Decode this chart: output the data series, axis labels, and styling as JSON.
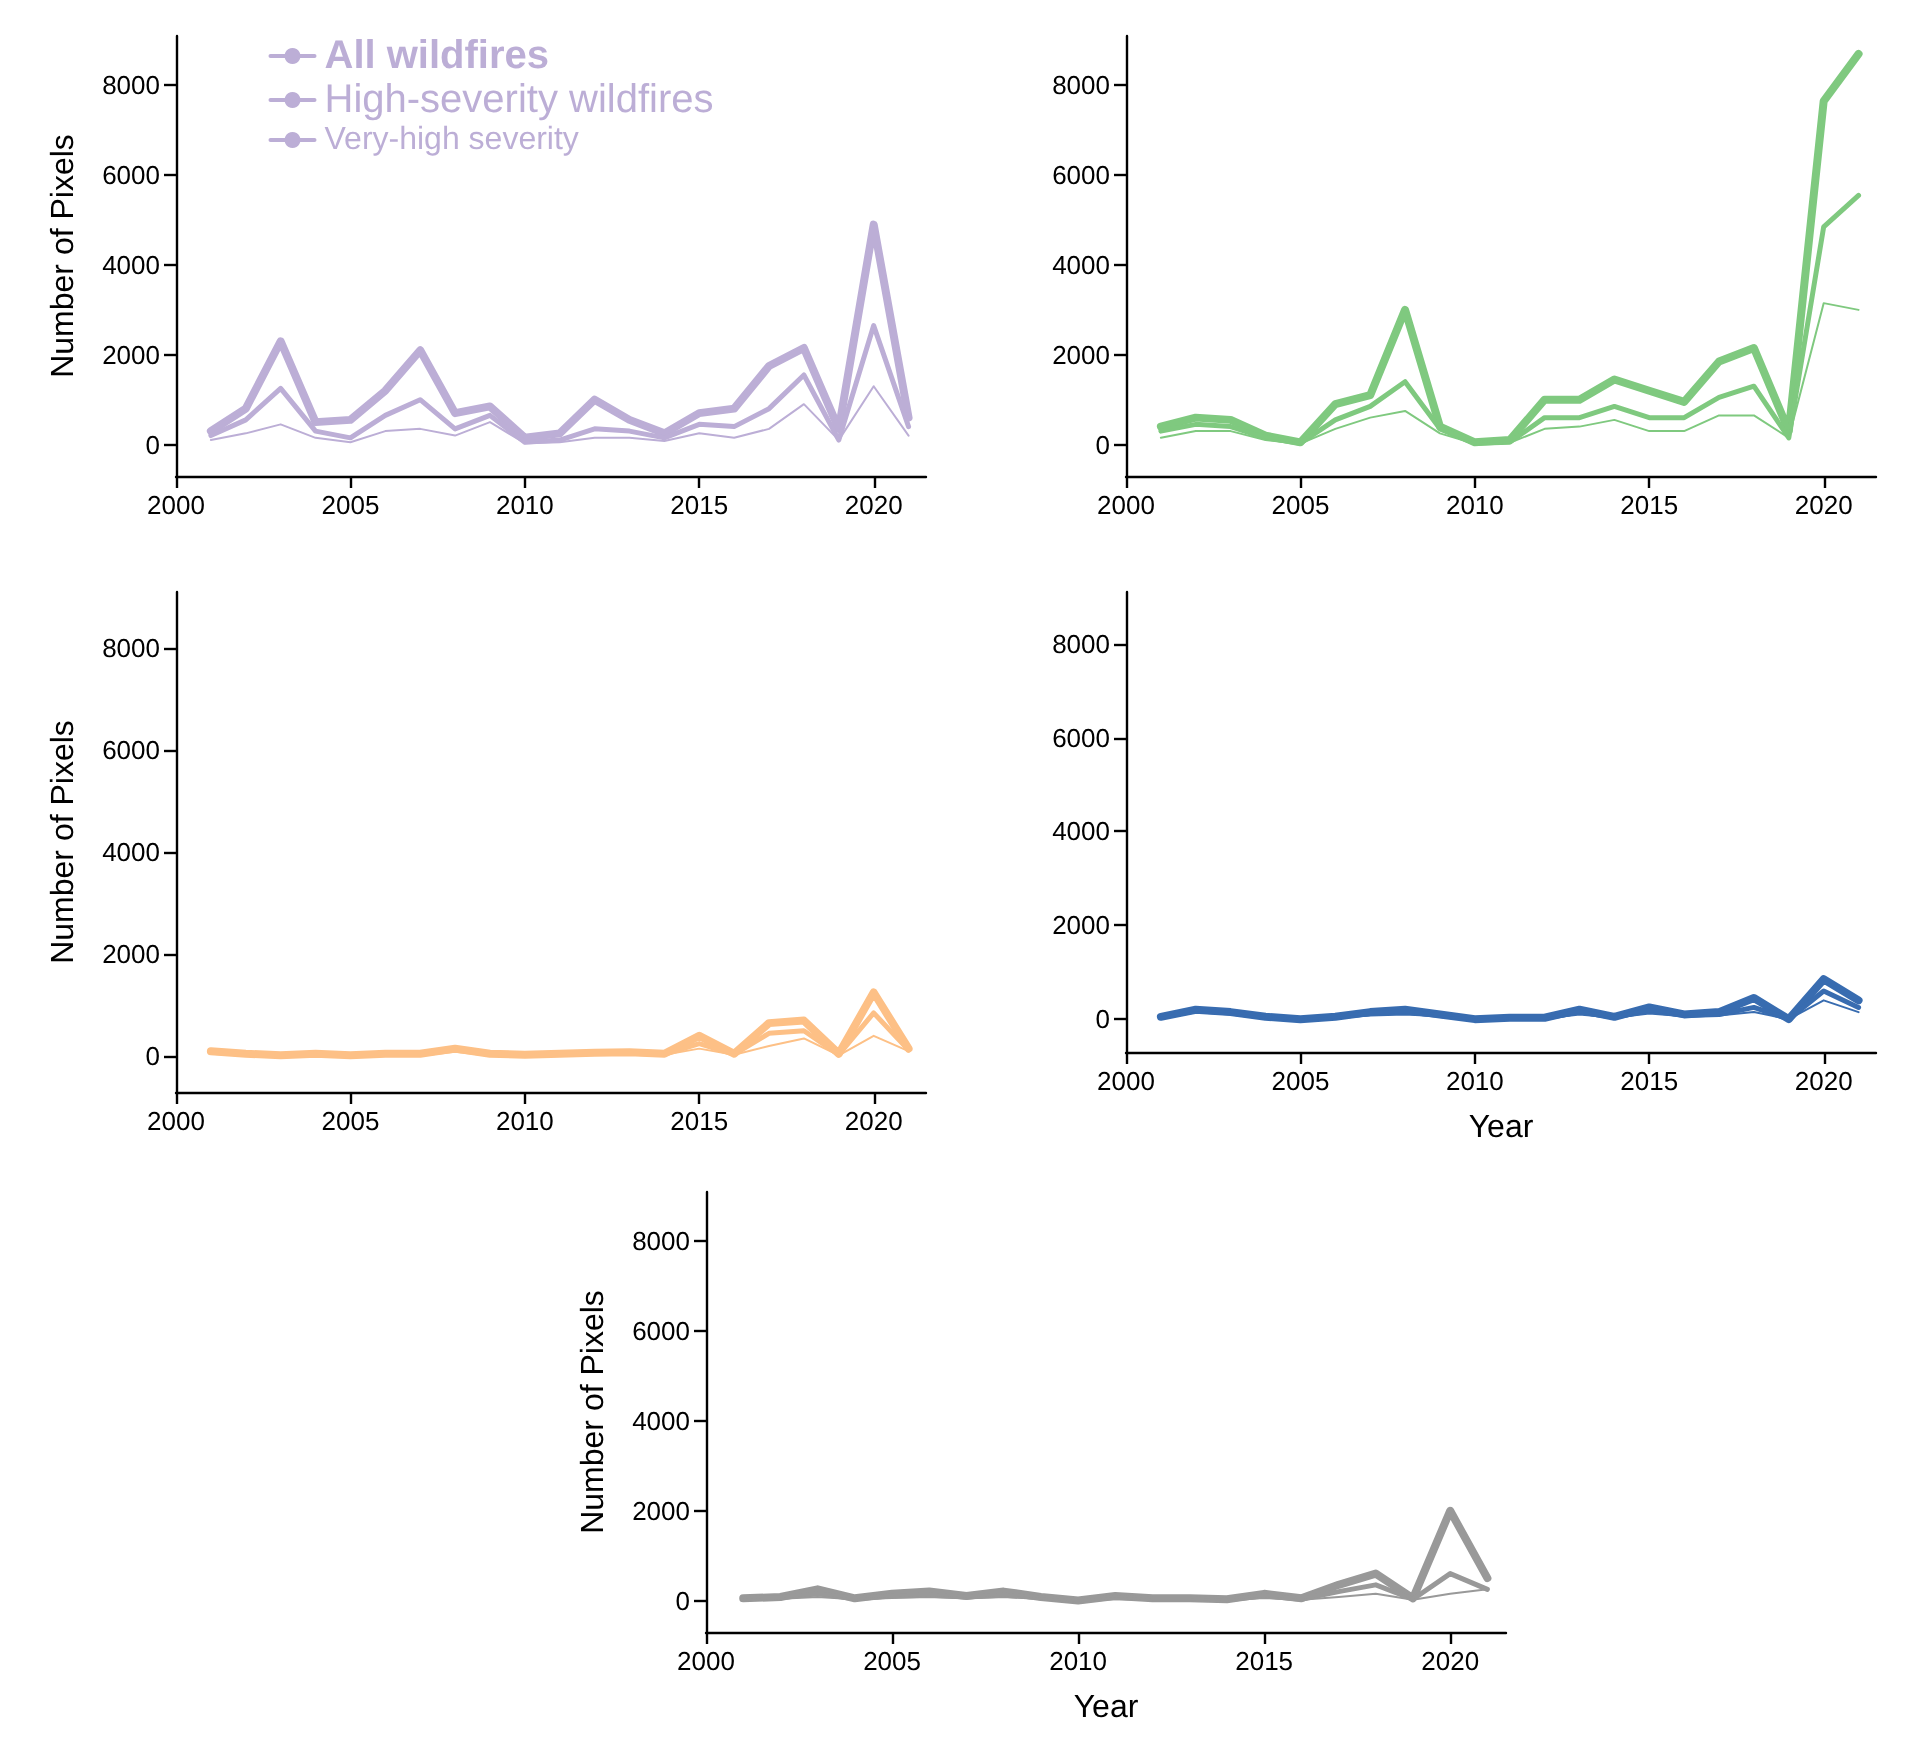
{
  "chart_data": [
    {
      "type": "line",
      "ylabel": "Number of Pixels",
      "legend": "top",
      "x": [
        2001,
        2002,
        2003,
        2004,
        2005,
        2006,
        2007,
        2008,
        2009,
        2010,
        2011,
        2012,
        2013,
        2014,
        2015,
        2016,
        2017,
        2018,
        2019,
        2020,
        2021
      ],
      "xlim": [
        2000,
        2021.5
      ],
      "xticks": [
        2000,
        2005,
        2010,
        2015,
        2020
      ],
      "ylim": [
        -700,
        9100
      ],
      "yticks": [
        0,
        2000,
        4000,
        6000,
        8000
      ],
      "grid": false,
      "marker": "none",
      "line_style": "solid",
      "series": [
        {
          "name": "All wildfires",
          "color": "#bcaed6",
          "values": [
            300,
            800,
            2300,
            500,
            550,
            1200,
            2100,
            700,
            850,
            150,
            250,
            1000,
            550,
            250,
            700,
            800,
            1750,
            2150,
            350,
            4900,
            600
          ]
        },
        {
          "name": "High-severity wildfires",
          "color": "#bcaed6",
          "values": [
            200,
            550,
            1250,
            300,
            150,
            650,
            1000,
            350,
            650,
            50,
            100,
            350,
            300,
            150,
            450,
            400,
            800,
            1550,
            100,
            2650,
            400
          ]
        },
        {
          "name": "Very-high severity",
          "color": "#bcaed6",
          "values": [
            100,
            250,
            450,
            150,
            50,
            300,
            350,
            200,
            500,
            30,
            50,
            150,
            150,
            80,
            250,
            150,
            350,
            900,
            100,
            1300,
            200
          ]
        }
      ]
    },
    {
      "type": "line",
      "x": [
        2001,
        2002,
        2003,
        2004,
        2005,
        2006,
        2007,
        2008,
        2009,
        2010,
        2011,
        2012,
        2013,
        2014,
        2015,
        2016,
        2017,
        2018,
        2019,
        2020,
        2021
      ],
      "xlim": [
        2000,
        2021.5
      ],
      "xticks": [
        2000,
        2005,
        2010,
        2015,
        2020
      ],
      "ylim": [
        -700,
        9100
      ],
      "yticks": [
        0,
        2000,
        4000,
        6000,
        8000
      ],
      "grid": false,
      "marker": "none",
      "line_style": "solid",
      "series": [
        {
          "color": "#7fc97f",
          "values": [
            400,
            600,
            550,
            200,
            50,
            900,
            1100,
            3000,
            400,
            50,
            100,
            1000,
            1000,
            1450,
            1200,
            950,
            1850,
            2150,
            300,
            7650,
            8700
          ]
        },
        {
          "color": "#7fc97f",
          "values": [
            300,
            450,
            400,
            150,
            30,
            550,
            850,
            1400,
            350,
            30,
            50,
            600,
            600,
            850,
            600,
            600,
            1050,
            1300,
            150,
            4850,
            5550
          ]
        },
        {
          "color": "#7fc97f",
          "values": [
            150,
            300,
            300,
            100,
            20,
            350,
            600,
            750,
            250,
            20,
            40,
            350,
            400,
            550,
            300,
            300,
            650,
            650,
            150,
            3150,
            3000
          ]
        }
      ]
    },
    {
      "type": "line",
      "ylabel": "Number of Pixels",
      "x": [
        2001,
        2002,
        2003,
        2004,
        2005,
        2006,
        2007,
        2008,
        2009,
        2010,
        2011,
        2012,
        2013,
        2014,
        2015,
        2016,
        2017,
        2018,
        2019,
        2020,
        2021
      ],
      "xlim": [
        2000,
        2021.5
      ],
      "xticks": [
        2000,
        2005,
        2010,
        2015,
        2020
      ],
      "ylim": [
        -700,
        9100
      ],
      "yticks": [
        0,
        2000,
        4000,
        6000,
        8000
      ],
      "grid": false,
      "marker": "none",
      "line_style": "solid",
      "series": [
        {
          "color": "#fdc086",
          "values": [
            100,
            50,
            20,
            50,
            20,
            50,
            50,
            150,
            50,
            30,
            50,
            70,
            80,
            50,
            400,
            50,
            650,
            700,
            50,
            1250,
            150
          ]
        },
        {
          "color": "#fdc086",
          "values": [
            80,
            40,
            20,
            40,
            20,
            40,
            40,
            120,
            40,
            20,
            40,
            60,
            60,
            40,
            250,
            40,
            450,
            500,
            30,
            850,
            120
          ]
        },
        {
          "color": "#fdc086",
          "values": [
            60,
            30,
            10,
            30,
            10,
            30,
            30,
            100,
            30,
            10,
            30,
            50,
            50,
            30,
            150,
            30,
            200,
            350,
            20,
            400,
            100
          ]
        }
      ]
    },
    {
      "type": "line",
      "xlabel": "Year",
      "x": [
        2001,
        2002,
        2003,
        2004,
        2005,
        2006,
        2007,
        2008,
        2009,
        2010,
        2011,
        2012,
        2013,
        2014,
        2015,
        2016,
        2017,
        2018,
        2019,
        2020,
        2021
      ],
      "xlim": [
        2000,
        2021.5
      ],
      "xticks": [
        2000,
        2005,
        2010,
        2015,
        2020
      ],
      "ylim": [
        -700,
        9100
      ],
      "yticks": [
        0,
        2000,
        4000,
        6000,
        8000
      ],
      "grid": false,
      "marker": "none",
      "line_style": "solid",
      "series": [
        {
          "color": "#386cb0",
          "values": [
            50,
            200,
            150,
            50,
            0,
            50,
            150,
            200,
            100,
            0,
            30,
            30,
            200,
            50,
            250,
            100,
            150,
            450,
            0,
            850,
            400
          ]
        },
        {
          "color": "#386cb0",
          "values": [
            40,
            180,
            130,
            40,
            0,
            40,
            120,
            150,
            80,
            0,
            20,
            20,
            150,
            40,
            180,
            80,
            100,
            250,
            0,
            600,
            250
          ]
        },
        {
          "color": "#386cb0",
          "values": [
            30,
            150,
            110,
            30,
            0,
            30,
            80,
            100,
            60,
            0,
            10,
            10,
            100,
            30,
            120,
            60,
            80,
            150,
            0,
            400,
            150
          ]
        }
      ]
    },
    {
      "type": "line",
      "xlabel": "Year",
      "ylabel": "Number of Pixels",
      "x": [
        2001,
        2002,
        2003,
        2004,
        2005,
        2006,
        2007,
        2008,
        2009,
        2010,
        2011,
        2012,
        2013,
        2014,
        2015,
        2016,
        2017,
        2018,
        2019,
        2020,
        2021
      ],
      "xlim": [
        2000,
        2021.5
      ],
      "xticks": [
        2000,
        2005,
        2010,
        2015,
        2020
      ],
      "ylim": [
        -700,
        9100
      ],
      "yticks": [
        0,
        2000,
        4000,
        6000,
        8000
      ],
      "grid": false,
      "marker": "none",
      "line_style": "solid",
      "series": [
        {
          "color": "#999999",
          "values": [
            50,
            80,
            250,
            50,
            150,
            200,
            100,
            200,
            80,
            0,
            100,
            50,
            50,
            30,
            150,
            50,
            350,
            600,
            50,
            2000,
            500
          ]
        },
        {
          "color": "#999999",
          "values": [
            40,
            60,
            150,
            40,
            100,
            120,
            80,
            120,
            60,
            0,
            70,
            40,
            40,
            20,
            100,
            30,
            200,
            350,
            30,
            600,
            250
          ]
        },
        {
          "color": "#999999",
          "values": [
            30,
            40,
            80,
            30,
            60,
            80,
            50,
            80,
            40,
            0,
            50,
            30,
            30,
            10,
            60,
            20,
            80,
            150,
            20,
            150,
            250
          ]
        }
      ]
    }
  ]
}
